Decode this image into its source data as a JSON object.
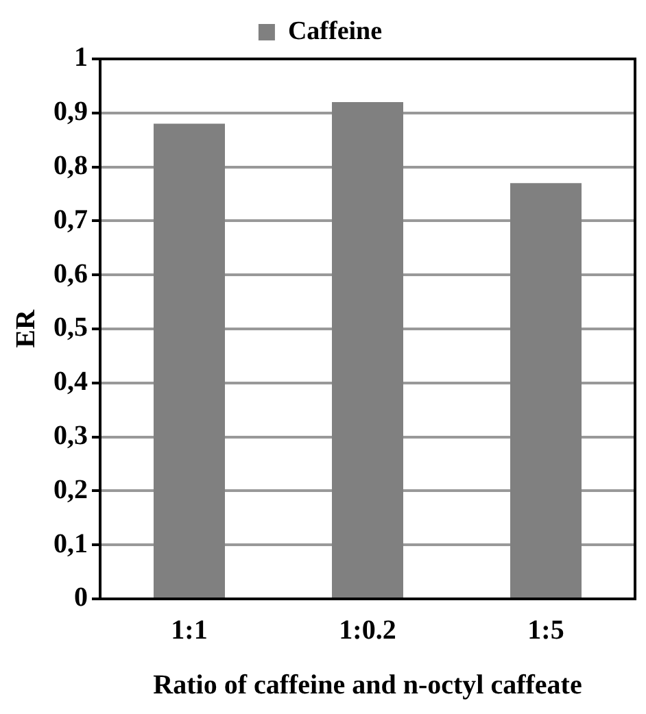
{
  "chart_data": {
    "type": "bar",
    "xlabel": "Ratio of caffeine and n-octyl caffeate",
    "ylabel": "ER",
    "categories": [
      "1:1",
      "1:0.2",
      "1:5"
    ],
    "series": [
      {
        "name": "Caffeine",
        "color": "#808080",
        "values": [
          0.88,
          0.92,
          0.77
        ]
      }
    ],
    "ylim": [
      0,
      1
    ],
    "yticks": [
      0,
      {
        "value": 0.1,
        "label": "0,1"
      },
      {
        "value": 0.2,
        "label": "0,2"
      },
      {
        "value": 0.3,
        "label": "0,3"
      },
      {
        "value": 0.4,
        "label": "0,4"
      },
      {
        "value": 0.5,
        "label": "0,5"
      },
      {
        "value": 0.6,
        "label": "0,6"
      },
      {
        "value": 0.7,
        "label": "0,7"
      },
      {
        "value": 0.8,
        "label": "0,8"
      },
      {
        "value": 0.9,
        "label": "0,9"
      },
      1
    ],
    "grid": "y",
    "legend": "top"
  }
}
